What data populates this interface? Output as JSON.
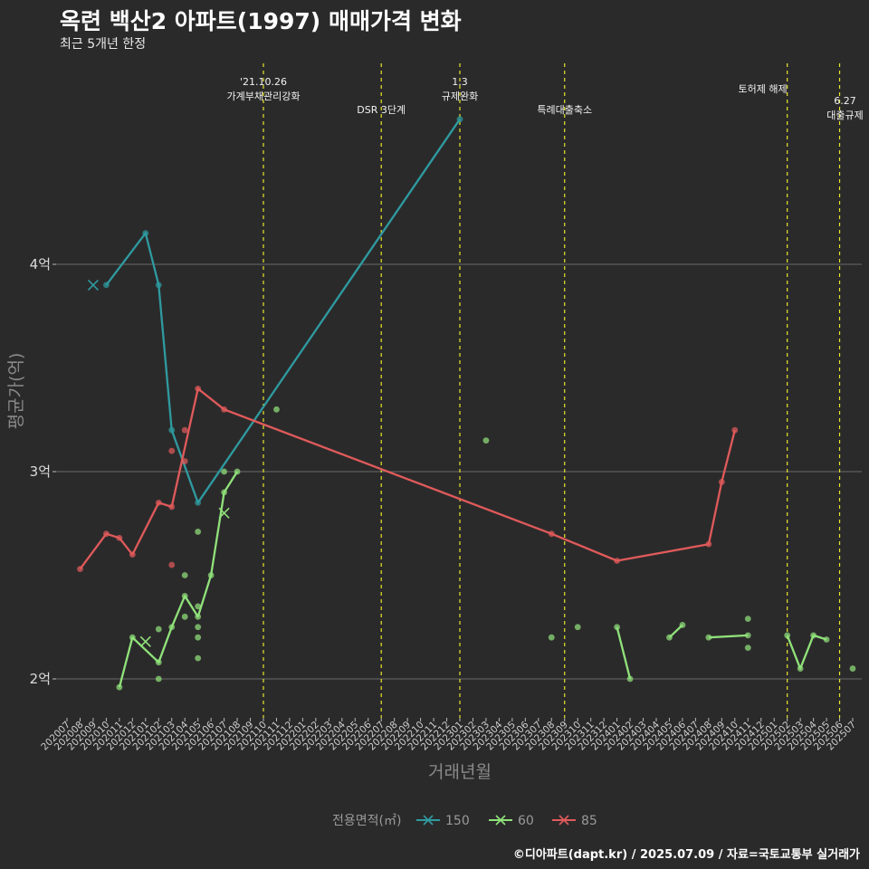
{
  "title": "옥련 백산2 아파트(1997) 매매가격 변화",
  "subtitle": "최근 5개년 한정",
  "caption": "©디아파트(dapt.kr) / 2025.07.09 / 자료=국토교통부 실거래가",
  "chart_data": {
    "type": "line",
    "xlabel": "거래년월",
    "ylabel": "평균가(억)",
    "y_ticks": [
      {
        "value": 2,
        "label": "2억"
      },
      {
        "value": 3,
        "label": "3억"
      },
      {
        "value": 4,
        "label": "4억"
      }
    ],
    "ylim": [
      1.83,
      4.93
    ],
    "grid": "horizontal major",
    "x_categories": [
      "202007",
      "202008",
      "202009",
      "202010",
      "202011",
      "202012",
      "202101",
      "202102",
      "202103",
      "202104",
      "202105",
      "202106",
      "202107",
      "202108",
      "202109",
      "202110",
      "202111",
      "202112",
      "202201",
      "202202",
      "202203",
      "202204",
      "202205",
      "202206",
      "202207",
      "202208",
      "202209",
      "202210",
      "202211",
      "202212",
      "202301",
      "202302",
      "202303",
      "202304",
      "202305",
      "202306",
      "202307",
      "202308",
      "202309",
      "202310",
      "202311",
      "202312",
      "202401",
      "202402",
      "202403",
      "202404",
      "202405",
      "202406",
      "202407",
      "202408",
      "202409",
      "202410",
      "202411",
      "202412",
      "202501",
      "202502",
      "202503",
      "202504",
      "202505",
      "202506",
      "202507"
    ],
    "legend": {
      "title": "전용면적(㎡)",
      "position": "bottom",
      "entries": [
        "150",
        "60",
        "85"
      ]
    },
    "colors": {
      "150": "#2e9ba0",
      "60": "#90e27a",
      "85": "#e05a5a",
      "event_line": "#e6e62a"
    },
    "events": [
      {
        "x": "202110",
        "label": "'21.10.26\n가계부채관리강화",
        "level": 1
      },
      {
        "x": "202207",
        "label": "DSR 3단계",
        "level": 2
      },
      {
        "x": "202301",
        "label": "1.3\n규제완화",
        "level": 1
      },
      {
        "x": "202309",
        "label": "특례대출축소",
        "level": 2
      },
      {
        "x": "202502",
        "label": "토허제 해제",
        "level": 0
      },
      {
        "x": "202506",
        "label": "6.27\n대출규제",
        "level": 3
      }
    ],
    "series": [
      {
        "name": "150",
        "line": [
          [
            "202010",
            3.9
          ],
          [
            "202101",
            4.15
          ],
          [
            "202102",
            3.9
          ],
          [
            "202103",
            3.2
          ],
          [
            "202105",
            2.85
          ],
          [
            "202301",
            4.7
          ]
        ],
        "points": [
          [
            "202010",
            3.9
          ],
          [
            "202101",
            4.15
          ],
          [
            "202102",
            3.9
          ],
          [
            "202103",
            3.2
          ],
          [
            "202105",
            2.85
          ],
          [
            "202301",
            4.7
          ]
        ],
        "cross": [
          [
            "202009",
            3.9
          ]
        ]
      },
      {
        "name": "60",
        "line_segments": [
          [
            [
              "202011",
              1.96
            ],
            [
              "202012",
              2.2
            ],
            [
              "202102",
              2.08
            ],
            [
              "202103",
              2.25
            ],
            [
              "202104",
              2.4
            ],
            [
              "202105",
              2.3
            ],
            [
              "202106",
              2.5
            ],
            [
              "202107",
              2.9
            ],
            [
              "202108",
              3.0
            ]
          ],
          [
            [
              "202401",
              2.25
            ],
            [
              "202402",
              2.0
            ]
          ],
          [
            [
              "202405",
              2.2
            ],
            [
              "202406",
              2.26
            ]
          ],
          [
            [
              "202408",
              2.2
            ],
            [
              "202411",
              2.21
            ]
          ],
          [
            [
              "202502",
              2.21
            ],
            [
              "202503",
              2.05
            ],
            [
              "202504",
              2.21
            ],
            [
              "202505",
              2.19
            ]
          ]
        ],
        "points": [
          [
            "202011",
            1.96
          ],
          [
            "202012",
            2.2
          ],
          [
            "202102",
            2.08
          ],
          [
            "202102",
            2.24
          ],
          [
            "202102",
            2.0
          ],
          [
            "202103",
            2.25
          ],
          [
            "202104",
            2.4
          ],
          [
            "202104",
            2.5
          ],
          [
            "202104",
            2.3
          ],
          [
            "202105",
            2.3
          ],
          [
            "202105",
            2.35
          ],
          [
            "202105",
            2.25
          ],
          [
            "202105",
            2.2
          ],
          [
            "202105",
            2.1
          ],
          [
            "202105",
            2.71
          ],
          [
            "202106",
            2.5
          ],
          [
            "202107",
            2.9
          ],
          [
            "202107",
            3.0
          ],
          [
            "202108",
            3.0
          ],
          [
            "202111",
            3.3
          ],
          [
            "202303",
            3.15
          ],
          [
            "202308",
            2.2
          ],
          [
            "202310",
            2.25
          ],
          [
            "202401",
            2.25
          ],
          [
            "202402",
            2.0
          ],
          [
            "202405",
            2.2
          ],
          [
            "202406",
            2.26
          ],
          [
            "202408",
            2.2
          ],
          [
            "202411",
            2.21
          ],
          [
            "202411",
            2.29
          ],
          [
            "202411",
            2.15
          ],
          [
            "202502",
            2.21
          ],
          [
            "202503",
            2.05
          ],
          [
            "202504",
            2.21
          ],
          [
            "202505",
            2.19
          ],
          [
            "202507",
            2.05
          ]
        ],
        "cross": [
          [
            "202101",
            2.18
          ],
          [
            "202107",
            2.8
          ]
        ]
      },
      {
        "name": "85",
        "line": [
          [
            "202008",
            2.53
          ],
          [
            "202010",
            2.7
          ],
          [
            "202011",
            2.68
          ],
          [
            "202012",
            2.6
          ],
          [
            "202102",
            2.85
          ],
          [
            "202103",
            2.83
          ],
          [
            "202105",
            3.4
          ],
          [
            "202107",
            3.3
          ],
          [
            "202308",
            2.7
          ],
          [
            "202401",
            2.57
          ],
          [
            "202408",
            2.65
          ],
          [
            "202409",
            2.95
          ],
          [
            "202410",
            3.2
          ]
        ],
        "points": [
          [
            "202008",
            2.53
          ],
          [
            "202010",
            2.7
          ],
          [
            "202011",
            2.68
          ],
          [
            "202012",
            2.6
          ],
          [
            "202102",
            2.85
          ],
          [
            "202103",
            2.83
          ],
          [
            "202103",
            3.1
          ],
          [
            "202103",
            2.55
          ],
          [
            "202104",
            3.2
          ],
          [
            "202104",
            3.05
          ],
          [
            "202105",
            3.4
          ],
          [
            "202107",
            3.3
          ],
          [
            "202308",
            2.7
          ],
          [
            "202401",
            2.57
          ],
          [
            "202408",
            2.65
          ],
          [
            "202409",
            2.95
          ],
          [
            "202410",
            3.2
          ]
        ]
      }
    ]
  }
}
